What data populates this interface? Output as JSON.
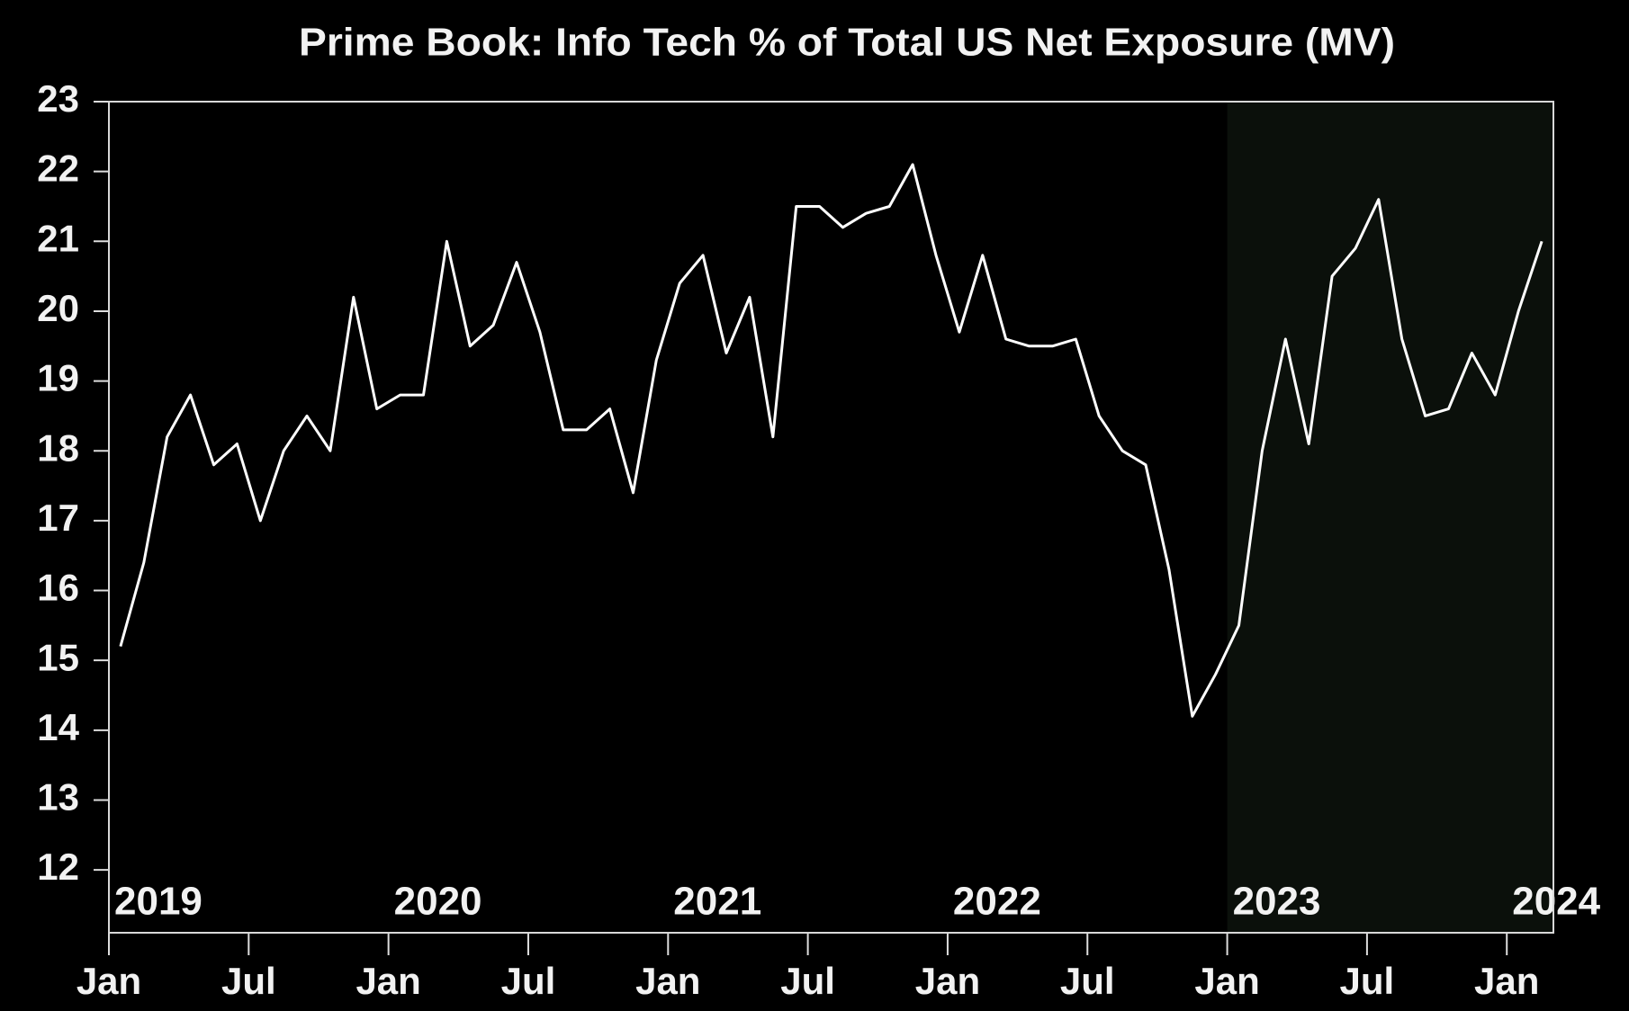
{
  "chart_data": {
    "type": "line",
    "title": "Prime Book: Info Tech % of Total US Net Exposure (MV)",
    "x": [
      "2019-01",
      "2019-02",
      "2019-03",
      "2019-04",
      "2019-05",
      "2019-06",
      "2019-07",
      "2019-08",
      "2019-09",
      "2019-10",
      "2019-11",
      "2019-12",
      "2020-01",
      "2020-02",
      "2020-03",
      "2020-04",
      "2020-05",
      "2020-06",
      "2020-07",
      "2020-08",
      "2020-09",
      "2020-10",
      "2020-11",
      "2020-12",
      "2021-01",
      "2021-02",
      "2021-03",
      "2021-04",
      "2021-05",
      "2021-06",
      "2021-07",
      "2021-08",
      "2021-09",
      "2021-10",
      "2021-11",
      "2021-12",
      "2022-01",
      "2022-02",
      "2022-03",
      "2022-04",
      "2022-05",
      "2022-06",
      "2022-07",
      "2022-08",
      "2022-09",
      "2022-10",
      "2022-11",
      "2022-12",
      "2023-01",
      "2023-02",
      "2023-03",
      "2023-04",
      "2023-05",
      "2023-06",
      "2023-07",
      "2023-08",
      "2023-09",
      "2023-10",
      "2023-11",
      "2023-12",
      "2024-01",
      "2024-02"
    ],
    "series": [
      {
        "name": "Info Tech % of Total US Net Exposure",
        "color": "#ffffff",
        "values": [
          15.2,
          16.4,
          18.2,
          18.8,
          17.8,
          18.1,
          17.0,
          18.0,
          18.5,
          18.0,
          20.2,
          18.6,
          18.8,
          18.8,
          21.0,
          19.5,
          19.8,
          20.7,
          19.7,
          18.3,
          18.3,
          18.6,
          17.4,
          19.3,
          20.4,
          20.8,
          19.4,
          20.2,
          18.2,
          21.5,
          21.5,
          21.2,
          21.4,
          21.5,
          22.1,
          20.8,
          19.7,
          20.8,
          19.6,
          19.5,
          19.5,
          19.6,
          18.5,
          18.0,
          17.8,
          16.3,
          14.2,
          14.8,
          15.5,
          18.0,
          19.6,
          18.1,
          20.5,
          20.9,
          21.6,
          19.6,
          18.5,
          18.6,
          19.4,
          18.8,
          20.0,
          21.0
        ]
      }
    ],
    "xlim": [
      "2019-01",
      "2024-03"
    ],
    "xticks": [
      {
        "value": "2019-01",
        "label": "Jan"
      },
      {
        "value": "2019-07",
        "label": "Jul"
      },
      {
        "value": "2020-01",
        "label": "Jan"
      },
      {
        "value": "2020-07",
        "label": "Jul"
      },
      {
        "value": "2021-01",
        "label": "Jan"
      },
      {
        "value": "2021-07",
        "label": "Jul"
      },
      {
        "value": "2022-01",
        "label": "Jan"
      },
      {
        "value": "2022-07",
        "label": "Jul"
      },
      {
        "value": "2023-01",
        "label": "Jan"
      },
      {
        "value": "2023-07",
        "label": "Jul"
      },
      {
        "value": "2024-01",
        "label": "Jan"
      }
    ],
    "year_ticks": [
      {
        "value": "2019-01",
        "label": "2019"
      },
      {
        "value": "2020-01",
        "label": "2020"
      },
      {
        "value": "2021-01",
        "label": "2021"
      },
      {
        "value": "2022-01",
        "label": "2022"
      },
      {
        "value": "2023-01",
        "label": "2023"
      },
      {
        "value": "2024-01",
        "label": "2024"
      }
    ],
    "ylim": [
      11.1,
      23
    ],
    "yticks": [
      12,
      13,
      14,
      15,
      16,
      17,
      18,
      19,
      20,
      21,
      22,
      23
    ],
    "highlight_from": "2023-01",
    "highlight_color": "#0b100b",
    "background": "#000000",
    "grid": false
  }
}
